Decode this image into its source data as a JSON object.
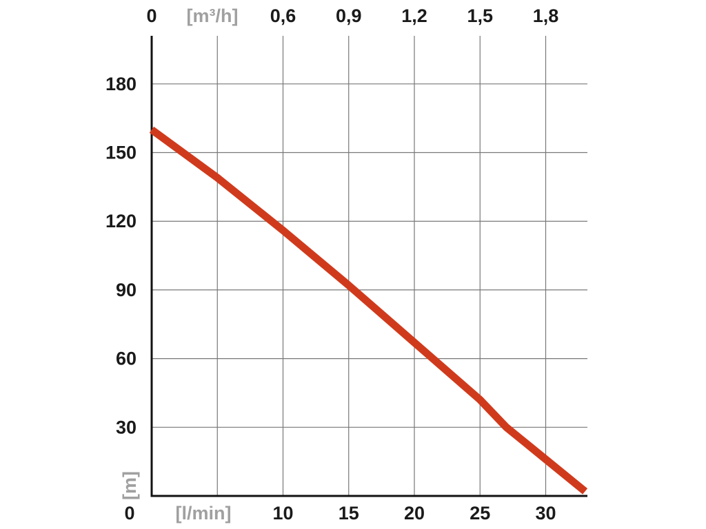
{
  "chart_data": {
    "type": "line",
    "x_bottom": {
      "unit_label": "[l/min]",
      "min": 0,
      "max": 33.3,
      "ticks": [
        0,
        5,
        10,
        15,
        20,
        25,
        30
      ],
      "tick_labels": [
        "0",
        "",
        "10",
        "15",
        "20",
        "25",
        "30"
      ]
    },
    "x_top": {
      "unit_label": "[m³/h]",
      "ticks": [
        0,
        0.3,
        0.6,
        0.9,
        1.2,
        1.5,
        1.8
      ],
      "tick_labels": [
        "0",
        "",
        "0,6",
        "0,9",
        "1,2",
        "1,5",
        "1,8"
      ]
    },
    "y": {
      "unit_label": "[m]",
      "min": 0,
      "max": 200,
      "ticks": [
        0,
        30,
        60,
        90,
        120,
        150,
        180
      ],
      "tick_labels": [
        "0",
        "30",
        "60",
        "90",
        "120",
        "150",
        "180"
      ]
    },
    "grid": true,
    "series": [
      {
        "color": "#d03a1c",
        "x": [
          0,
          5,
          10,
          15,
          17,
          20,
          25,
          27,
          30,
          33
        ],
        "y": [
          160,
          139,
          116,
          92,
          82,
          67,
          42,
          30,
          16,
          2
        ]
      }
    ]
  }
}
